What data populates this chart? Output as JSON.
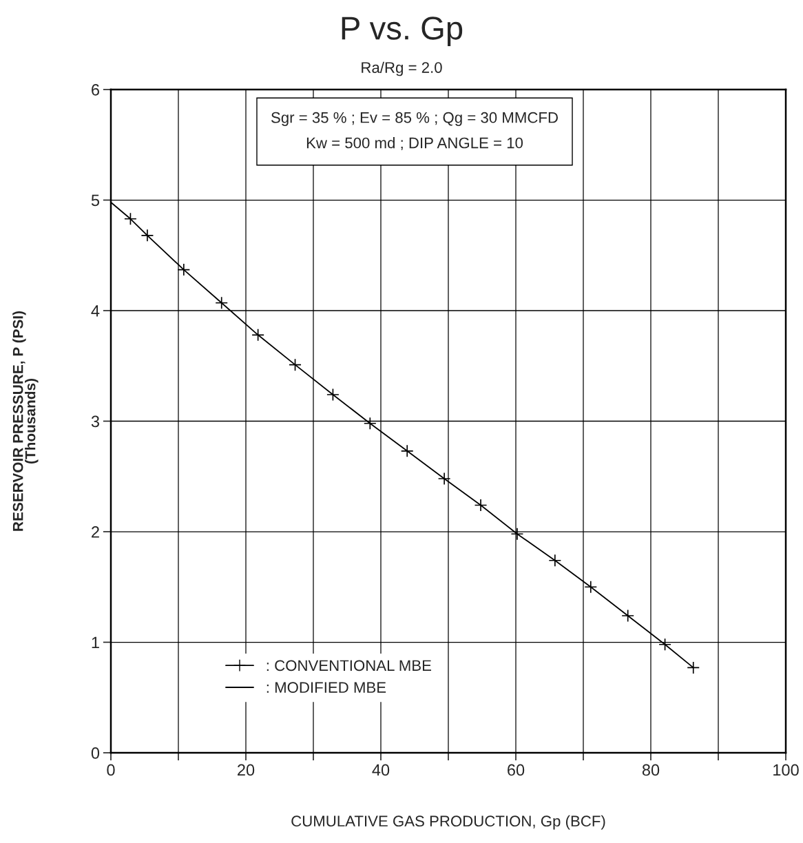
{
  "chart_data": {
    "type": "line",
    "title": "P vs. Gp",
    "subtitle": "Ra/Rg = 2.0",
    "xlabel": "CUMULATIVE GAS PRODUCTION, Gp (BCF)",
    "ylabel": "RESERVOIR PRESSURE, P (PSI)\n(Thousands)",
    "annotations": [
      "Sgr = 35 % ; Ev = 85 % ; Qg = 30 MMCFD\nKw = 500 md ; DIP ANGLE = 10"
    ],
    "series": [
      {
        "name": ": CONVENTIONAL MBE",
        "type": "scatter",
        "marker": "cross",
        "color": "#000000",
        "x": [
          2.9,
          5.4,
          10.8,
          16.4,
          21.8,
          27.3,
          32.9,
          38.4,
          43.9,
          49.4,
          54.8,
          60.2,
          65.8,
          71.1,
          76.6,
          82.1,
          86.3
        ],
        "values": [
          4.83,
          4.68,
          4.37,
          4.07,
          3.78,
          3.51,
          3.24,
          2.98,
          2.73,
          2.48,
          2.24,
          1.98,
          1.74,
          1.5,
          1.24,
          0.98,
          0.77
        ]
      },
      {
        "name": ": MODIFIED MBE",
        "marker": "none",
        "line_style": "solid",
        "color": "#000000",
        "x": [
          0,
          2.9,
          5.4,
          10.8,
          16.4,
          21.8,
          27.3,
          32.9,
          38.4,
          43.9,
          49.4,
          54.8,
          60.2,
          65.8,
          71.1,
          76.6,
          82.1,
          86.3
        ],
        "values": [
          4.98,
          4.83,
          4.68,
          4.37,
          4.07,
          3.78,
          3.51,
          3.24,
          2.98,
          2.73,
          2.48,
          2.24,
          1.98,
          1.74,
          1.5,
          1.24,
          0.98,
          0.77
        ]
      }
    ],
    "xlim": [
      0,
      100
    ],
    "xticks": [
      0,
      {
        "value": 10,
        "label": null
      },
      20,
      {
        "value": 30,
        "label": null
      },
      40,
      {
        "value": 50,
        "label": null
      },
      60,
      {
        "value": 70,
        "label": null
      },
      80,
      {
        "value": 90,
        "label": null
      },
      100
    ],
    "ylim": [
      0,
      6
    ],
    "yticks": [
      0,
      1,
      2,
      3,
      4,
      5,
      6
    ],
    "grid": true,
    "legend": "bottom left"
  }
}
